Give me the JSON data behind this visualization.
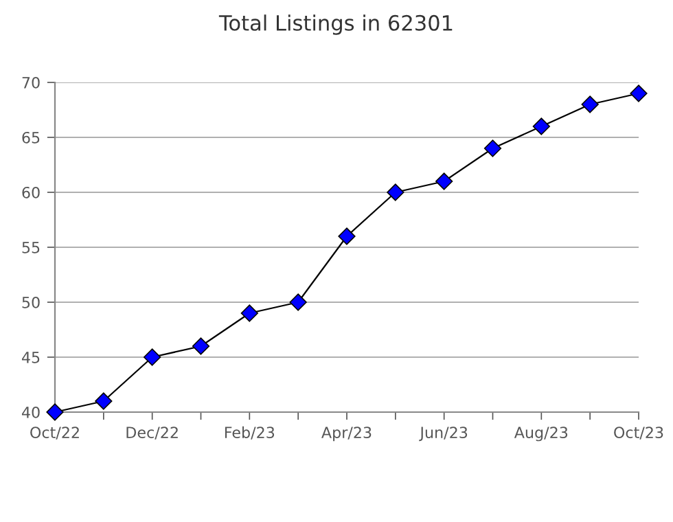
{
  "chart_data": {
    "type": "line",
    "title": "Total Listings in 62301",
    "categories": [
      "Oct/22",
      null,
      "Dec/22",
      null,
      "Feb/23",
      null,
      "Apr/23",
      null,
      "Jun/23",
      null,
      "Aug/23",
      null,
      "Oct/23"
    ],
    "series": [
      {
        "color": "#0000ff",
        "values": [
          40,
          41,
          45,
          46,
          49,
          50,
          56,
          60,
          61,
          64,
          66,
          68,
          69
        ]
      }
    ],
    "ylim": [
      40,
      70
    ],
    "yticks": [
      40,
      45,
      50,
      55,
      60,
      65,
      70
    ],
    "grid": "y",
    "marker": "diamond",
    "line_style": "solid"
  }
}
